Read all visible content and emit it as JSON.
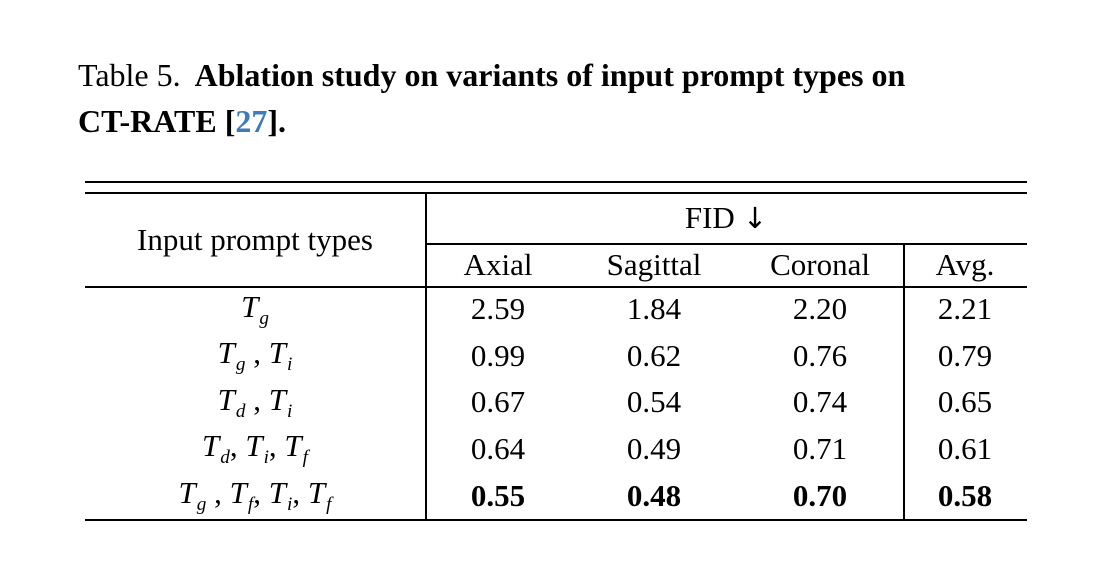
{
  "caption": {
    "tag": "Table 5.",
    "line1_bold": "Ablation study on variants of input prompt types on",
    "line2_prefix": "CT-RATE [",
    "ref": "27",
    "line2_suffix": "].",
    "ref_color": "#3d7bba"
  },
  "table": {
    "row_header": "Input prompt types",
    "group_header": {
      "label": "FID",
      "arrow": "↓"
    },
    "col_headers": [
      "Axial",
      "Sagittal",
      "Coronal",
      "Avg."
    ],
    "rows": [
      {
        "label": [
          {
            "base": "T",
            "sub": "g"
          }
        ],
        "separators": [],
        "values": [
          "2.59",
          "1.84",
          "2.20",
          "2.21"
        ],
        "bold": false
      },
      {
        "label": [
          {
            "base": "T",
            "sub": "g"
          },
          {
            "base": "T",
            "sub": "i"
          }
        ],
        "separators": [
          " , "
        ],
        "values": [
          "0.99",
          "0.62",
          "0.76",
          "0.79"
        ],
        "bold": false
      },
      {
        "label": [
          {
            "base": "T",
            "sub": "d"
          },
          {
            "base": "T",
            "sub": "i"
          }
        ],
        "separators": [
          " , "
        ],
        "values": [
          "0.67",
          "0.54",
          "0.74",
          "0.65"
        ],
        "bold": false
      },
      {
        "label": [
          {
            "base": "T",
            "sub": "d"
          },
          {
            "base": "T",
            "sub": "i"
          },
          {
            "base": "T",
            "sub": "f"
          }
        ],
        "separators": [
          ", ",
          ", "
        ],
        "values": [
          "0.64",
          "0.49",
          "0.71",
          "0.61"
        ],
        "bold": false
      },
      {
        "label": [
          {
            "base": "T",
            "sub": "g"
          },
          {
            "base": "T",
            "sub": "f"
          },
          {
            "base": "T",
            "sub": "i"
          },
          {
            "base": "T",
            "sub": "f"
          }
        ],
        "separators": [
          " , ",
          ", ",
          ", "
        ],
        "values": [
          "0.55",
          "0.48",
          "0.70",
          "0.58"
        ],
        "bold": true
      }
    ]
  }
}
